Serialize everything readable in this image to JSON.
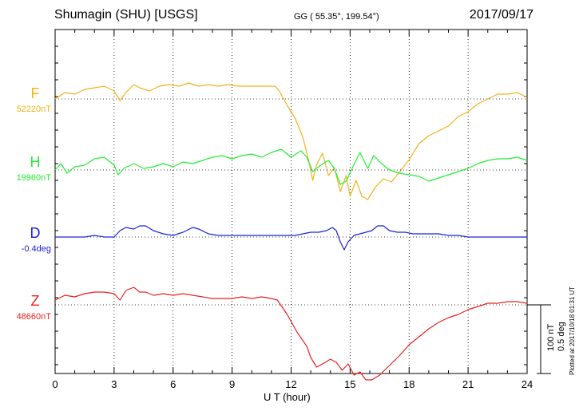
{
  "header": {
    "title": "Shumagin (SHU)  [USGS]",
    "coords": "GG ( 55.35°, 199.54°)",
    "date": "2017/09/17"
  },
  "footer": "Plotted at 2017/10/18 01:31 UT",
  "scale": {
    "line1": "100 nT",
    "line2": "0.5 deg"
  },
  "chart_data": {
    "type": "line",
    "xlabel": "U T (hour)",
    "xlim": [
      0,
      24
    ],
    "xticks": [
      "0",
      "3",
      "6",
      "9",
      "12",
      "15",
      "18",
      "21",
      "24"
    ],
    "grid": true,
    "series": [
      {
        "name": "F",
        "baseline_label": "52220nT",
        "color": "#f2b21b",
        "x": [
          0,
          0.5,
          1,
          1.5,
          2,
          2.5,
          3,
          3.3,
          3.6,
          4,
          4.3,
          4.8,
          5.3,
          5.8,
          6.3,
          6.8,
          7.3,
          7.8,
          8.3,
          8.8,
          9.3,
          9.8,
          10.3,
          10.8,
          11.2,
          11.4,
          11.8,
          12.2,
          12.6,
          12.9,
          13.1,
          13.3,
          13.6,
          13.9,
          14.2,
          14.5,
          14.8,
          15.0,
          15.3,
          15.6,
          15.9,
          16.3,
          16.7,
          17.1,
          17.5,
          18.0,
          18.5,
          19.0,
          19.5,
          20.0,
          20.5,
          21.0,
          21.5,
          22.0,
          22.5,
          23.0,
          23.5,
          24.0
        ],
        "y": [
          52220,
          52228,
          52226,
          52232,
          52234,
          52236,
          52230,
          52218,
          52228,
          52238,
          52234,
          52230,
          52236,
          52238,
          52236,
          52240,
          52236,
          52238,
          52236,
          52238,
          52236,
          52236,
          52236,
          52236,
          52236,
          52230,
          52212,
          52196,
          52172,
          52142,
          52118,
          52138,
          52152,
          52124,
          52134,
          52104,
          52124,
          52098,
          52118,
          52098,
          52094,
          52110,
          52120,
          52116,
          52128,
          52144,
          52164,
          52174,
          52180,
          52186,
          52198,
          52204,
          52214,
          52220,
          52226,
          52226,
          52228,
          52222
        ]
      },
      {
        "name": "H",
        "baseline_label": "19960nT",
        "color": "#22ee33",
        "x": [
          0,
          0.3,
          0.6,
          1,
          1.5,
          2,
          2.5,
          3,
          3.2,
          3.5,
          4,
          4.5,
          5,
          5.5,
          6,
          6.5,
          7,
          7.5,
          8,
          8.5,
          9,
          9.5,
          10,
          10.5,
          11,
          11.5,
          12,
          12.5,
          12.8,
          13.1,
          13.5,
          13.9,
          14.2,
          14.5,
          14.8,
          15.1,
          15.5,
          15.9,
          16.2,
          16.6,
          17,
          17.5,
          18,
          18.5,
          19,
          19.5,
          20,
          20.5,
          21,
          21.5,
          22,
          22.5,
          23,
          23.5,
          24
        ],
        "y": [
          19960,
          19968,
          19956,
          19964,
          19966,
          19974,
          19976,
          19966,
          19954,
          19962,
          19968,
          19962,
          19964,
          19968,
          19964,
          19970,
          19968,
          19972,
          19976,
          19978,
          19974,
          19978,
          19980,
          19976,
          19982,
          19986,
          19976,
          19984,
          19976,
          19958,
          19966,
          19972,
          19962,
          19942,
          19946,
          19962,
          19982,
          19962,
          19978,
          19968,
          19960,
          19956,
          19954,
          19952,
          19946,
          19950,
          19954,
          19958,
          19962,
          19968,
          19972,
          19974,
          19974,
          19976,
          19972
        ]
      },
      {
        "name": "D",
        "baseline_label": "-0.4deg",
        "color": "#1a22dd",
        "x": [
          0,
          0.5,
          1,
          1.5,
          2,
          2.5,
          3,
          3.3,
          3.6,
          4,
          4.3,
          4.6,
          5,
          5.5,
          6,
          6.5,
          7,
          7.3,
          7.8,
          8.3,
          8.8,
          9.3,
          9.8,
          10.3,
          10.8,
          11.3,
          11.8,
          12.2,
          12.6,
          13,
          13.4,
          13.8,
          14.1,
          14.3,
          14.5,
          14.7,
          14.9,
          15.2,
          15.5,
          15.8,
          16.1,
          16.4,
          16.7,
          17.0,
          17.4,
          17.8,
          18.2,
          18.8,
          19.5,
          20,
          20.5,
          21,
          21.5,
          22,
          22.5,
          23,
          23.5,
          24
        ],
        "y": [
          -0.4,
          -0.4,
          -0.4,
          -0.4,
          -0.39,
          -0.4,
          -0.4,
          -0.36,
          -0.34,
          -0.35,
          -0.33,
          -0.33,
          -0.36,
          -0.38,
          -0.39,
          -0.37,
          -0.34,
          -0.35,
          -0.38,
          -0.39,
          -0.39,
          -0.39,
          -0.39,
          -0.39,
          -0.39,
          -0.39,
          -0.39,
          -0.39,
          -0.38,
          -0.37,
          -0.37,
          -0.36,
          -0.34,
          -0.36,
          -0.43,
          -0.48,
          -0.43,
          -0.39,
          -0.38,
          -0.37,
          -0.36,
          -0.33,
          -0.33,
          -0.36,
          -0.37,
          -0.37,
          -0.38,
          -0.38,
          -0.38,
          -0.39,
          -0.39,
          -0.4,
          -0.4,
          -0.4,
          -0.4,
          -0.4,
          -0.4,
          -0.4
        ]
      },
      {
        "name": "Z",
        "baseline_label": "48660nT",
        "color": "#e82222",
        "x": [
          0,
          0.5,
          1,
          1.5,
          2,
          2.5,
          3,
          3.3,
          3.6,
          4,
          4.3,
          4.6,
          5,
          5.5,
          6,
          6.5,
          7,
          7.5,
          8,
          8.5,
          9,
          9.5,
          10,
          10.5,
          11,
          11.3,
          11.8,
          12.3,
          12.8,
          13.0,
          13.3,
          13.6,
          14,
          14.3,
          14.6,
          14.9,
          15.2,
          15.5,
          15.8,
          16.1,
          16.5,
          17,
          17.5,
          18,
          18.5,
          19,
          19.5,
          20,
          20.5,
          21,
          21.5,
          22,
          22.5,
          23,
          23.5,
          24
        ],
        "y": [
          48666,
          48672,
          48670,
          48674,
          48676,
          48676,
          48674,
          48666,
          48678,
          48682,
          48676,
          48676,
          48672,
          48674,
          48672,
          48674,
          48672,
          48670,
          48668,
          48668,
          48668,
          48670,
          48668,
          48670,
          48668,
          48666,
          48648,
          48626,
          48608,
          48594,
          48582,
          48586,
          48592,
          48588,
          48578,
          48586,
          48572,
          48576,
          48566,
          48566,
          48572,
          48584,
          48596,
          48610,
          48620,
          48630,
          48638,
          48644,
          48648,
          48654,
          48658,
          48662,
          48662,
          48664,
          48664,
          48662
        ]
      }
    ]
  }
}
